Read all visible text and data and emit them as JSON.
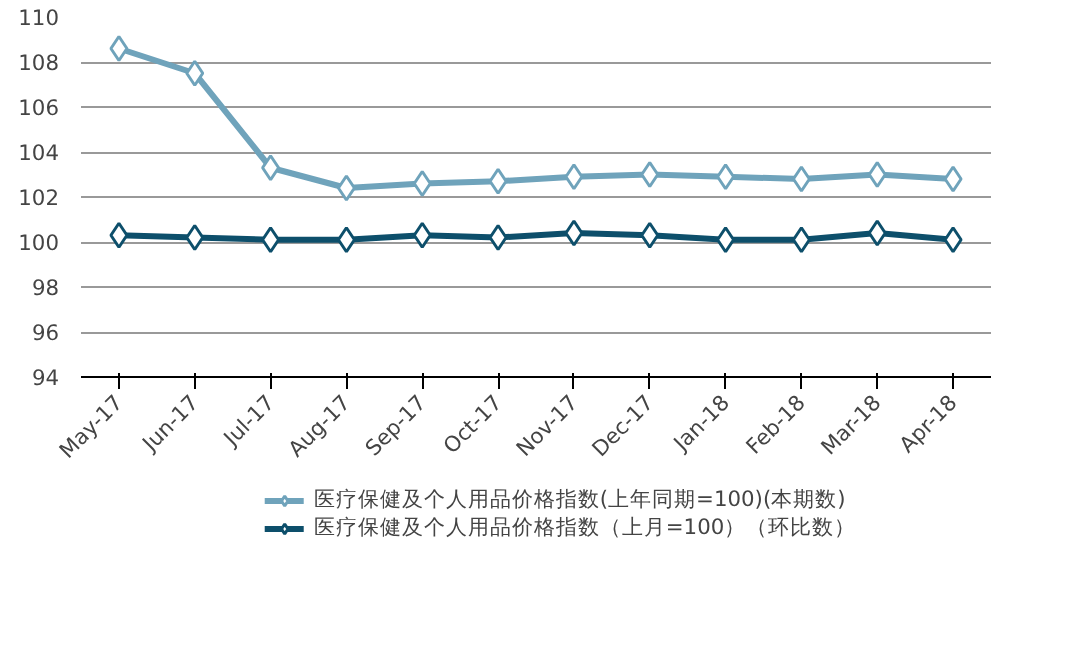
{
  "chart_data": {
    "type": "line",
    "categories": [
      "May-17",
      "Jun-17",
      "Jul-17",
      "Aug-17",
      "Sep-17",
      "Oct-17",
      "Nov-17",
      "Dec-17",
      "Jan-18",
      "Feb-18",
      "Mar-18",
      "Apr-18"
    ],
    "series": [
      {
        "name": "医疗保健及个人用品价格指数(上年同期=100)(本期数)",
        "color": "#6fa3bb",
        "values": [
          108.6,
          107.5,
          103.3,
          102.4,
          102.6,
          102.7,
          102.9,
          103.0,
          102.9,
          102.8,
          103.0,
          102.8
        ]
      },
      {
        "name": "医疗保健及个人用品价格指数（上月=100）（环比数）",
        "color": "#0d4f6b",
        "values": [
          100.3,
          100.2,
          100.1,
          100.1,
          100.3,
          100.2,
          100.4,
          100.3,
          100.1,
          100.1,
          100.4,
          100.1
        ]
      }
    ],
    "ylim": [
      94,
      110
    ],
    "yticks": [
      94,
      96,
      98,
      100,
      102,
      104,
      106,
      108,
      110
    ],
    "grid": "y",
    "legend": "bottom",
    "marker": "diamond",
    "line_style": "solid"
  }
}
